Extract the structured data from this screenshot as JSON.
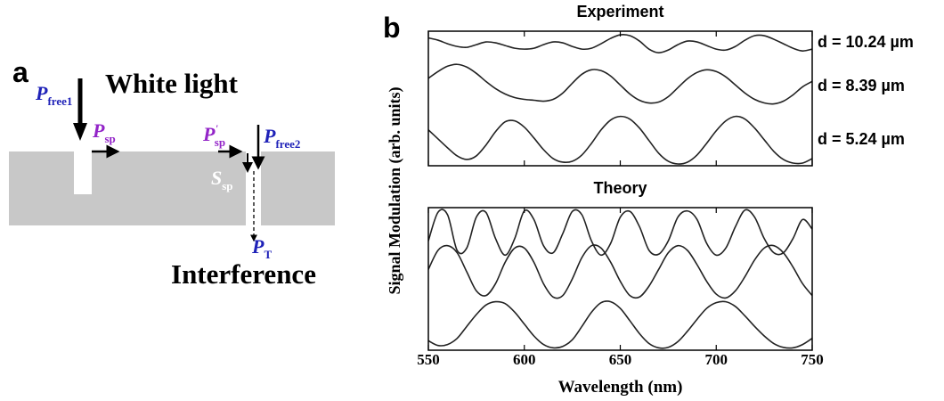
{
  "panel_a": {
    "label": "a",
    "title": "White light",
    "caption": "Interference",
    "symbols": [
      {
        "main": "P",
        "sub": "free1",
        "color": "#1f22b8"
      },
      {
        "main": "P",
        "sub": "sp",
        "color": "#9324c8"
      },
      {
        "main": "P",
        "sub": "sp",
        "sup": "'",
        "color": "#9324c8"
      },
      {
        "main": "P",
        "sub": "free2",
        "color": "#1f22b8"
      },
      {
        "main": "S",
        "sub": "sp",
        "color": "#ffffff"
      },
      {
        "main": "P",
        "sub": "T",
        "color": "#1f22b8"
      }
    ]
  },
  "panel_b": {
    "label": "b"
  },
  "chart_data": [
    {
      "type": "line",
      "title": "Experiment",
      "xlim": [
        550,
        750
      ],
      "xticks": [
        550,
        600,
        650,
        700,
        750
      ],
      "xtick_labels": false,
      "ylim": [
        0,
        3
      ],
      "x": [
        550,
        555,
        560,
        565,
        570,
        575,
        580,
        585,
        590,
        595,
        600,
        605,
        610,
        615,
        620,
        625,
        630,
        635,
        640,
        645,
        650,
        655,
        660,
        665,
        670,
        675,
        680,
        685,
        690,
        695,
        700,
        705,
        710,
        715,
        720,
        725,
        730,
        735,
        740,
        745,
        750
      ],
      "series": [
        {
          "name": "d = 10.24 µm",
          "color": "#222222",
          "values": [
            2.85,
            2.8,
            2.72,
            2.66,
            2.64,
            2.7,
            2.76,
            2.74,
            2.68,
            2.62,
            2.6,
            2.62,
            2.7,
            2.76,
            2.74,
            2.66,
            2.6,
            2.62,
            2.72,
            2.84,
            2.92,
            2.9,
            2.78,
            2.6,
            2.52,
            2.58,
            2.7,
            2.78,
            2.76,
            2.68,
            2.6,
            2.58,
            2.66,
            2.8,
            2.9,
            2.9,
            2.82,
            2.72,
            2.62,
            2.56,
            2.6
          ]
        },
        {
          "name": "d = 8.39 µm",
          "color": "#222222",
          "values": [
            1.95,
            2.1,
            2.22,
            2.26,
            2.2,
            2.06,
            1.88,
            1.72,
            1.6,
            1.52,
            1.48,
            1.46,
            1.44,
            1.48,
            1.62,
            1.84,
            2.04,
            2.14,
            2.12,
            2.0,
            1.8,
            1.6,
            1.46,
            1.4,
            1.42,
            1.54,
            1.74,
            1.94,
            2.08,
            2.14,
            2.1,
            1.98,
            1.8,
            1.62,
            1.48,
            1.4,
            1.38,
            1.44,
            1.58,
            1.76,
            1.88
          ]
        },
        {
          "name": "d = 5.24 µm",
          "color": "#222222",
          "values": [
            0.8,
            0.6,
            0.4,
            0.22,
            0.14,
            0.22,
            0.46,
            0.76,
            0.98,
            1.0,
            0.86,
            0.62,
            0.36,
            0.16,
            0.08,
            0.1,
            0.24,
            0.5,
            0.8,
            1.02,
            1.1,
            1.04,
            0.84,
            0.56,
            0.28,
            0.1,
            0.04,
            0.08,
            0.24,
            0.5,
            0.78,
            1.0,
            1.1,
            1.04,
            0.84,
            0.58,
            0.32,
            0.14,
            0.06,
            0.06,
            0.16
          ]
        }
      ]
    },
    {
      "type": "line",
      "title": "Theory",
      "xlabel": "Wavelength (nm)",
      "ylabel": "Signal Modulation (arb. units)",
      "xlim": [
        550,
        750
      ],
      "xticks": [
        550,
        600,
        650,
        700,
        750
      ],
      "xtick_labels": true,
      "ylim": [
        0,
        3
      ],
      "x": [
        550,
        555,
        560,
        565,
        570,
        575,
        580,
        585,
        590,
        595,
        600,
        605,
        610,
        615,
        620,
        625,
        630,
        635,
        640,
        645,
        650,
        655,
        660,
        665,
        670,
        675,
        680,
        685,
        690,
        695,
        700,
        705,
        710,
        715,
        720,
        725,
        730,
        735,
        740,
        745,
        750
      ],
      "series": [
        {
          "color": "#222222",
          "values": [
            2.3,
            2.9,
            2.85,
            2.1,
            2.15,
            2.8,
            2.9,
            2.35,
            2.0,
            2.35,
            2.93,
            2.75,
            2.2,
            2.05,
            2.45,
            2.92,
            2.85,
            2.3,
            2.0,
            2.25,
            2.8,
            2.92,
            2.6,
            2.1,
            2.02,
            2.3,
            2.8,
            2.93,
            2.75,
            2.25,
            2.0,
            2.15,
            2.6,
            2.95,
            2.8,
            2.35,
            2.05,
            2.05,
            2.35,
            2.75,
            2.55
          ]
        },
        {
          "color": "#222222",
          "values": [
            1.7,
            2.1,
            2.2,
            2.05,
            1.65,
            1.25,
            1.15,
            1.4,
            1.85,
            2.15,
            2.15,
            1.85,
            1.4,
            1.12,
            1.15,
            1.5,
            1.95,
            2.2,
            2.15,
            1.85,
            1.45,
            1.15,
            1.12,
            1.35,
            1.7,
            2.05,
            2.2,
            2.1,
            1.8,
            1.45,
            1.18,
            1.1,
            1.25,
            1.55,
            1.9,
            2.15,
            2.2,
            2.05,
            1.75,
            1.4,
            1.15
          ]
        },
        {
          "color": "#222222",
          "values": [
            0.2,
            0.1,
            0.12,
            0.25,
            0.5,
            0.75,
            0.95,
            1.02,
            0.98,
            0.8,
            0.55,
            0.3,
            0.12,
            0.05,
            0.08,
            0.22,
            0.5,
            0.8,
            1.0,
            1.02,
            0.88,
            0.62,
            0.35,
            0.14,
            0.05,
            0.06,
            0.18,
            0.4,
            0.65,
            0.88,
            1.0,
            1.02,
            0.92,
            0.72,
            0.5,
            0.3,
            0.14,
            0.06,
            0.05,
            0.12,
            0.25
          ]
        }
      ]
    }
  ]
}
